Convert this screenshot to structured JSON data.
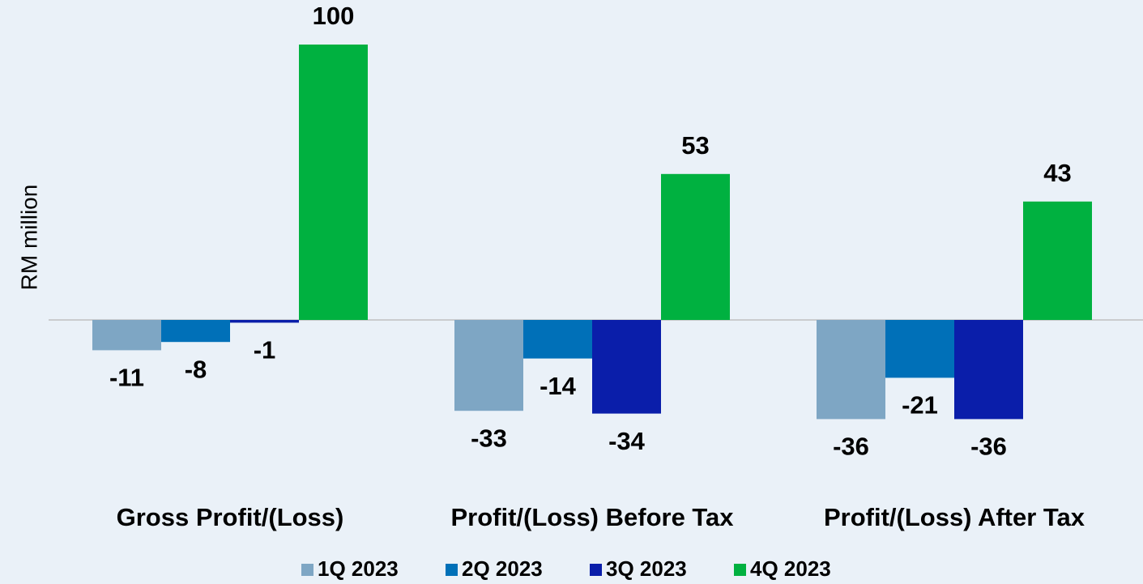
{
  "chart_data": {
    "type": "bar",
    "y_label": "RM million",
    "categories": [
      "Gross Profit/(Loss)",
      "Profit/(Loss) Before Tax",
      "Profit/(Loss) After Tax"
    ],
    "series": [
      {
        "name": "1Q 2023",
        "color": "#7ea6c4",
        "values": [
          -11,
          -33,
          -36
        ]
      },
      {
        "name": "2Q 2023",
        "color": "#0070b8",
        "values": [
          -8,
          -14,
          -21
        ]
      },
      {
        "name": "3Q 2023",
        "color": "#0a1eaa",
        "values": [
          -1,
          -34,
          -36
        ]
      },
      {
        "name": "4Q 2023",
        "color": "#00b140",
        "values": [
          100,
          53,
          43
        ]
      }
    ],
    "ylim": [
      -40,
      110
    ],
    "legend": "bottom"
  }
}
